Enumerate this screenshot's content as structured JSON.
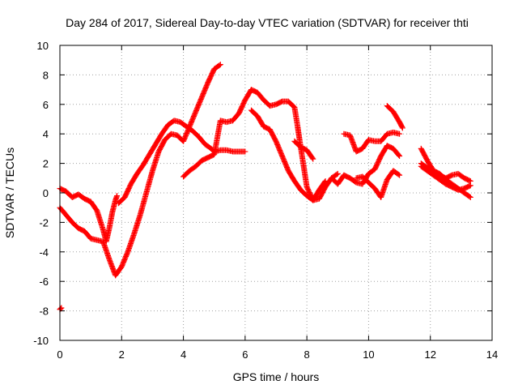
{
  "chart_data": {
    "type": "scatter",
    "title": "Day 284 of 2017, Sidereal Day-to-day VTEC variation (SDTVAR) for receiver thti",
    "xlabel": "GPS time / hours",
    "ylabel": "SDTVAR / TECUs",
    "xlim": [
      0,
      14
    ],
    "ylim": [
      -10,
      10
    ],
    "xticks": [
      0,
      2,
      4,
      6,
      8,
      10,
      12,
      14
    ],
    "yticks": [
      -10,
      -8,
      -6,
      -4,
      -2,
      0,
      2,
      4,
      6,
      8,
      10
    ],
    "grid": true,
    "marker": "plus",
    "color": "#ff0000",
    "series": [
      {
        "x": [
          0.0,
          0.05
        ],
        "y": [
          -7.9,
          -7.8
        ]
      },
      {
        "x": [
          0.0,
          0.2,
          0.4,
          0.6,
          0.8,
          1.0,
          1.2,
          1.4,
          1.6,
          1.8,
          2.0,
          2.2,
          2.4,
          2.6,
          2.8,
          3.0,
          3.2,
          3.4,
          3.6,
          3.8,
          4.0,
          4.2,
          4.4,
          4.6,
          4.8,
          5.0,
          5.2
        ],
        "y": [
          -1.0,
          -1.5,
          -2.0,
          -2.4,
          -2.6,
          -3.1,
          -3.2,
          -3.3,
          -4.5,
          -5.6,
          -5.0,
          -4.0,
          -2.8,
          -1.5,
          0.0,
          1.5,
          2.8,
          3.6,
          4.0,
          3.9,
          3.5,
          4.5,
          5.5,
          6.5,
          7.5,
          8.4,
          8.7
        ]
      },
      {
        "x": [
          0.0,
          0.2,
          0.4,
          0.6,
          0.8,
          1.0,
          1.2,
          1.4,
          1.5,
          1.6,
          1.7,
          1.8,
          1.85
        ],
        "y": [
          0.3,
          0.1,
          -0.3,
          -0.1,
          -0.4,
          -0.6,
          -1.2,
          -2.5,
          -3.3,
          -2.4,
          -1.3,
          -0.5,
          -0.2
        ]
      },
      {
        "x": [
          1.9,
          2.1,
          2.3,
          2.5,
          2.7,
          2.9,
          3.1,
          3.3,
          3.5,
          3.7,
          3.9,
          4.1,
          4.3,
          4.5,
          4.7,
          4.9,
          5.0,
          5.2,
          5.4,
          5.6,
          5.8,
          6.0
        ],
        "y": [
          -0.7,
          -0.3,
          0.6,
          1.3,
          1.9,
          2.6,
          3.3,
          4.0,
          4.6,
          4.9,
          4.8,
          4.5,
          4.2,
          3.8,
          3.3,
          3.0,
          2.8,
          2.9,
          2.9,
          2.8,
          2.8,
          2.8
        ]
      },
      {
        "x": [
          4.0,
          4.2,
          4.4,
          4.6,
          4.8,
          5.0,
          5.2,
          5.4,
          5.6,
          5.8,
          6.0,
          6.2,
          6.4,
          6.6,
          6.8,
          7.0,
          7.2,
          7.4,
          7.6,
          7.7,
          7.8,
          8.0,
          8.2,
          8.4,
          8.6,
          8.8,
          9.0
        ],
        "y": [
          1.1,
          1.5,
          1.8,
          2.2,
          2.4,
          2.6,
          4.9,
          4.8,
          4.9,
          5.4,
          6.3,
          7.0,
          6.8,
          6.3,
          5.9,
          6.0,
          6.2,
          6.2,
          5.8,
          4.5,
          3.1,
          0.4,
          -0.5,
          -0.4,
          0.4,
          1.0,
          1.3
        ]
      },
      {
        "x": [
          6.2,
          6.4,
          6.6,
          6.8,
          7.0,
          7.2,
          7.4,
          7.6,
          7.8,
          8.0,
          8.2,
          8.4,
          8.6
        ],
        "y": [
          5.6,
          5.2,
          4.5,
          4.3,
          3.5,
          2.5,
          1.5,
          0.8,
          0.2,
          -0.2,
          -0.5,
          0.2,
          0.8
        ]
      },
      {
        "x": [
          7.6,
          7.8,
          8.0,
          8.2
        ],
        "y": [
          3.5,
          3.1,
          2.9,
          2.3
        ]
      },
      {
        "x": [
          8.8,
          9.0,
          9.2,
          9.4,
          9.6,
          9.8,
          10.0,
          10.2,
          10.4,
          10.6,
          10.8,
          11.0
        ],
        "y": [
          1.0,
          0.6,
          1.2,
          1.0,
          0.7,
          0.6,
          1.3,
          1.6,
          2.5,
          3.2,
          3.0,
          2.5
        ]
      },
      {
        "x": [
          9.2,
          9.4,
          9.6,
          9.8,
          10.0,
          10.2,
          10.4,
          10.6,
          10.8,
          11.0
        ],
        "y": [
          4.0,
          3.9,
          2.8,
          3.0,
          3.6,
          3.5,
          3.5,
          4.0,
          4.1,
          4.0
        ]
      },
      {
        "x": [
          9.6,
          9.8,
          10.0,
          10.2,
          10.4,
          10.6,
          10.8,
          11.0
        ],
        "y": [
          1.0,
          1.1,
          0.7,
          0.3,
          -0.3,
          0.9,
          1.5,
          1.2
        ]
      },
      {
        "x": [
          10.6,
          10.8,
          11.0,
          11.1
        ],
        "y": [
          5.9,
          5.5,
          4.8,
          4.4
        ]
      },
      {
        "x": [
          11.7,
          11.9,
          12.1,
          12.3,
          12.5,
          12.7,
          12.9,
          13.1,
          13.3
        ],
        "y": [
          3.0,
          2.2,
          1.5,
          1.3,
          0.9,
          0.6,
          0.3,
          0.0,
          -0.3
        ]
      },
      {
        "x": [
          11.7,
          11.9,
          12.1,
          12.3,
          12.5,
          12.7,
          12.9,
          13.1,
          13.3
        ],
        "y": [
          2.0,
          1.7,
          1.5,
          1.2,
          1.0,
          1.2,
          1.3,
          1.0,
          0.8
        ]
      },
      {
        "x": [
          11.7,
          11.9,
          12.1,
          12.3,
          12.5,
          12.7,
          12.9,
          13.1,
          13.3
        ],
        "y": [
          1.8,
          1.5,
          1.2,
          0.9,
          0.6,
          0.4,
          0.2,
          0.3,
          0.5
        ]
      }
    ]
  }
}
